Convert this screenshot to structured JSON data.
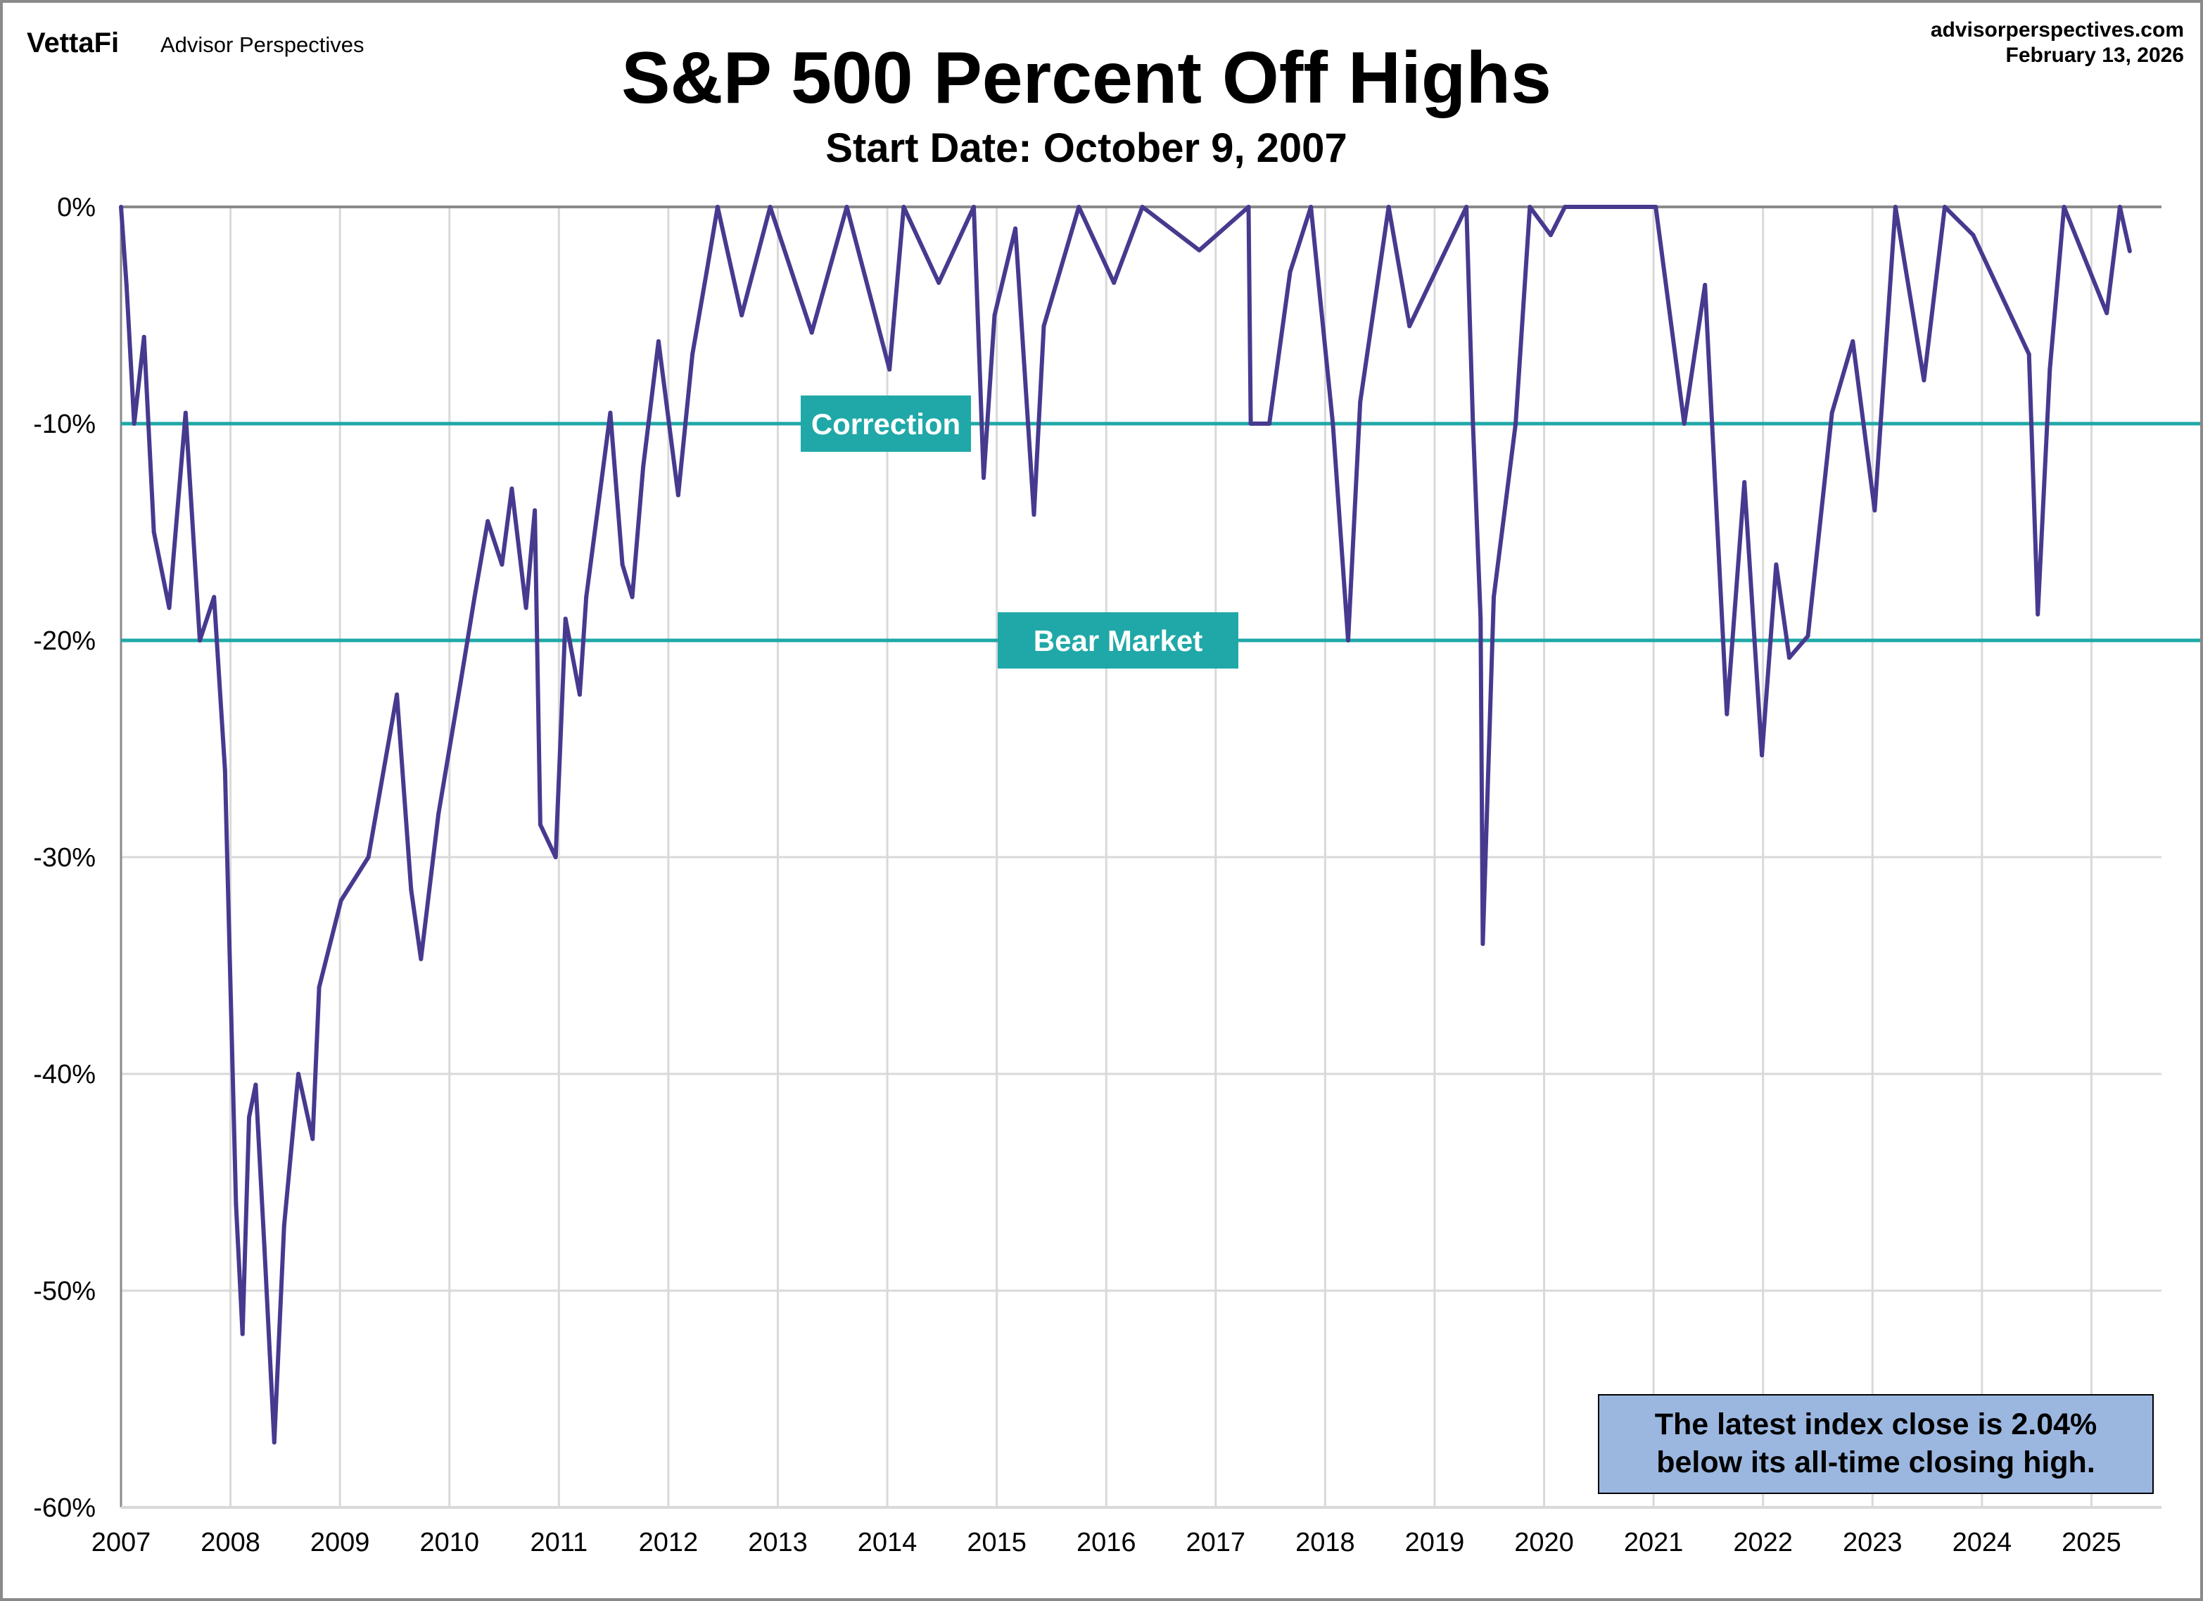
{
  "header": {
    "logo": "VettaFi",
    "brand": "Advisor Perspectives",
    "website": "advisorperspectives.com",
    "date": "February 13, 2026"
  },
  "chart_data": {
    "type": "line",
    "title": "S&P 500 Percent Off Highs",
    "subtitle": "Start Date: October 9, 2007",
    "xlabel": "",
    "ylabel": "",
    "x_ticks": [
      "2007",
      "2008",
      "2009",
      "2010",
      "2011",
      "2012",
      "2013",
      "2014",
      "2015",
      "2016",
      "2017",
      "2018",
      "2019",
      "2020",
      "2021",
      "2022",
      "2023",
      "2024",
      "2025"
    ],
    "xlim": [
      2007,
      2025.64
    ],
    "ylim": [
      -60,
      0
    ],
    "y_ticks": [
      0,
      -10,
      -20,
      -30,
      -40,
      -50,
      -60
    ],
    "y_tick_labels": [
      "0%",
      "-10%",
      "-20%",
      "-30%",
      "-40%",
      "-50%",
      "-60%"
    ],
    "grid": true,
    "line_color": "#463a8f",
    "reference_color": "#20a8a8",
    "reference_lines": [
      {
        "value": -10,
        "label": "Correction"
      },
      {
        "value": -20,
        "label": "Bear Market"
      }
    ],
    "series": [
      {
        "x": [
          2007.0,
          2007.05,
          2007.12,
          2007.21,
          2007.3,
          2007.44,
          2007.59,
          2007.72,
          2007.85,
          2007.95,
          2008.0,
          2008.05,
          2008.11,
          2008.17,
          2008.23,
          2008.31,
          2008.4,
          2008.49,
          2008.62,
          2008.75,
          2008.81,
          2009.01,
          2009.26,
          2009.52,
          2009.65,
          2009.74,
          2009.9,
          2010.1,
          2010.23,
          2010.35,
          2010.48,
          2010.57,
          2010.7,
          2010.78,
          2010.83,
          2010.97,
          2011.06,
          2011.19,
          2011.25,
          2011.38,
          2011.47,
          2011.58,
          2011.67,
          2011.77,
          2011.91,
          2012.09,
          2012.22,
          2012.35,
          2012.45,
          2012.67,
          2012.93,
          2013.31,
          2013.63,
          2014.02,
          2014.15,
          2014.47,
          2014.79,
          2014.88,
          2014.98,
          2015.17,
          2015.34,
          2015.43,
          2015.75,
          2016.07,
          2016.33,
          2016.85,
          2017.3,
          2017.32,
          2017.49,
          2017.68,
          2017.87,
          2018.07,
          2018.21,
          2018.32,
          2018.58,
          2018.77,
          2019.29,
          2019.35,
          2019.42,
          2019.44,
          2019.54,
          2019.74,
          2019.87,
          2020.06,
          2020.19,
          2021.02,
          2021.28,
          2021.47,
          2021.67,
          2021.83,
          2021.99,
          2022.12,
          2022.24,
          2022.41,
          2022.63,
          2022.82,
          2023.02,
          2023.21,
          2023.47,
          2023.66,
          2023.92,
          2024.43,
          2024.51,
          2024.62,
          2024.75,
          2025.14,
          2025.26,
          2025.35
        ],
        "y": [
          0,
          -3.6,
          -10,
          -6,
          -15,
          -18.5,
          -9.5,
          -20,
          -18,
          -26,
          -36,
          -46,
          -52,
          -42,
          -40.5,
          -48,
          -57,
          -47,
          -40,
          -43,
          -36,
          -32,
          -30,
          -22.5,
          -31.5,
          -34.7,
          -28,
          -22,
          -18,
          -14.5,
          -16.5,
          -13,
          -18.5,
          -14,
          -28.5,
          -30,
          -19,
          -22.5,
          -18,
          -13,
          -9.5,
          -16.5,
          -18,
          -12,
          -6.2,
          -13.3,
          -6.8,
          -3,
          0,
          -5,
          0,
          -5.8,
          0,
          -7.5,
          0,
          -3.5,
          0,
          -12.5,
          -5,
          -1,
          -14.2,
          -5.5,
          0,
          -3.5,
          0,
          -2,
          0,
          -10,
          -10,
          -3,
          0,
          -10,
          -20,
          -9,
          0,
          -5.5,
          0,
          -10,
          -19,
          -34,
          -18,
          -10,
          0,
          -1.3,
          0,
          0,
          -10,
          -3.6,
          -23.4,
          -12.7,
          -25.3,
          -16.5,
          -20.8,
          -19.8,
          -9.5,
          -6.2,
          -14,
          0,
          -8,
          0,
          -1.3,
          -6.8,
          -18.8,
          -7.5,
          0,
          -4.9,
          0,
          -2.04
        ]
      }
    ],
    "annotation": {
      "line1": "The latest index close is 2.04%",
      "line2": "below its all-time closing high.",
      "fill": "#9bb7e0"
    }
  }
}
